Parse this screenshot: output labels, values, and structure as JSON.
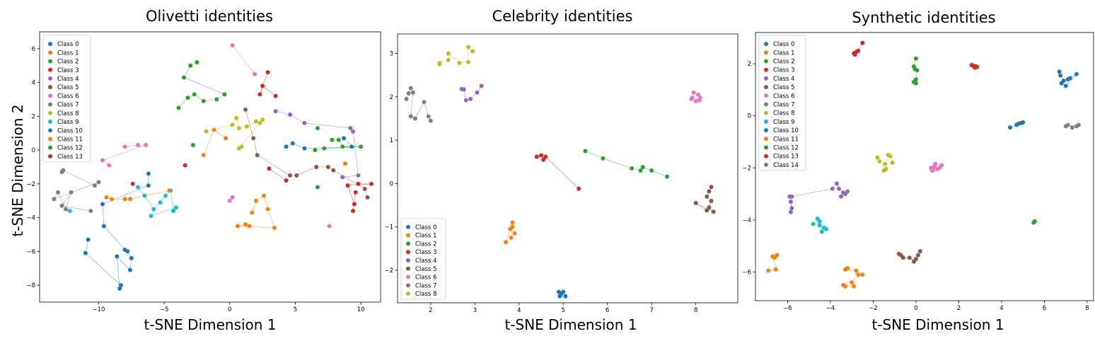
{
  "chart_data": [
    {
      "type": "scatter",
      "title": "Olivetti identities",
      "xlabel": "t-SNE Dimension 1",
      "ylabel": "t-SNE Dimension 2",
      "xlim": [
        -14.5,
        11.5
      ],
      "ylim": [
        -9,
        7
      ],
      "xticks": [
        -10,
        -5,
        0,
        5,
        10
      ],
      "yticks": [
        -8,
        -6,
        -4,
        -2,
        0,
        2,
        4,
        6
      ],
      "legend": "top-left",
      "series": [
        {
          "name": "Class 0",
          "x": [
            4.3,
            4.8,
            5.7,
            9.3,
            8.7
          ],
          "y": [
            0.2,
            0.4,
            0.1,
            0.2,
            0.7
          ]
        },
        {
          "name": "Class 1",
          "x": [
            -2.0,
            -1.2,
            -0.3,
            1.7,
            2.0,
            2.6,
            2.9,
            3.4,
            0.6,
            1.2,
            1.5,
            8.8
          ],
          "y": [
            -0.3,
            1.2,
            0.7,
            -3.7,
            -3.0,
            -2.7,
            -3.5,
            -4.6,
            -4.5,
            -4.4,
            -4.5,
            -0.8
          ]
        },
        {
          "name": "Class 2",
          "x": [
            -3.9,
            -3.2,
            -2.7,
            -2.0,
            -1.0,
            -0.4,
            -3.5,
            -3.0,
            -2.5,
            -2.8,
            6.7,
            6.7
          ],
          "y": [
            2.5,
            3.1,
            3.3,
            2.9,
            3.0,
            3.3,
            4.3,
            5.0,
            5.2,
            0.3,
            1.3,
            -2.2
          ]
        },
        {
          "name": "Class 3",
          "x": [
            2.9,
            2.3,
            2.5,
            3.5,
            3.0,
            4.3,
            9.8,
            10.8,
            9.0,
            9.5
          ],
          "y": [
            4.6,
            3.3,
            3.8,
            3.2,
            -1.1,
            -1.8,
            -2.0,
            -2.0,
            -2.1,
            -3.2
          ]
        },
        {
          "name": "Class 4",
          "x": [
            3.5,
            4.6,
            5.7,
            9.2,
            9.4,
            9.8,
            8.6
          ],
          "y": [
            2.3,
            2.1,
            1.6,
            1.3,
            1.1,
            -1.5,
            -1.6
          ]
        },
        {
          "name": "Class 5",
          "x": [
            1.2,
            1.8,
            2.1,
            4.6,
            5.1,
            6.6,
            7.5,
            7.9,
            10.3,
            10.5
          ],
          "y": [
            2.4,
            0.7,
            -0.3,
            -1.5,
            -1.5,
            -1.0,
            -1.0,
            -1.2,
            -2.3,
            -2.8
          ]
        },
        {
          "name": "Class 6",
          "x": [
            0.2,
            1.9,
            -8.0,
            -7.0,
            -6.4,
            -9.7,
            -9.2,
            0.0,
            0.2,
            7.6
          ],
          "y": [
            6.2,
            4.5,
            0.2,
            0.3,
            0.3,
            -0.6,
            -0.9,
            -3.0,
            -2.8,
            -4.5
          ]
        },
        {
          "name": "Class 7",
          "x": [
            -12.8,
            -12.7,
            -10.3,
            -10.0,
            -13.4,
            -13.1,
            -12.5,
            -12.1,
            -12.8,
            -10.6
          ],
          "y": [
            -1.3,
            -1.2,
            -2.1,
            -1.9,
            -2.9,
            -2.5,
            -3.5,
            -2.5,
            -3.3,
            -3.6
          ]
        },
        {
          "name": "Class 8",
          "x": [
            -1.8,
            0.2,
            0.5,
            0.7,
            1.3,
            2.0,
            2.3,
            2.5,
            0.7,
            0.9
          ],
          "y": [
            1.1,
            1.5,
            1.9,
            1.3,
            1.4,
            1.7,
            1.6,
            1.8,
            0.1,
            0.2
          ]
        },
        {
          "name": "Class 9",
          "x": [
            -7.0,
            -6.5,
            -5.8,
            -5.3,
            -4.9,
            -4.5,
            -4.3,
            -4.1,
            -6.0,
            -12.2
          ],
          "y": [
            -2.2,
            -2.7,
            -3.5,
            -3.1,
            -2.7,
            -2.4,
            -3.6,
            -3.4,
            -3.9,
            -3.6
          ]
        },
        {
          "name": "Class 10",
          "x": [
            -6.2,
            -6.2,
            -9.7,
            -9.6,
            -8.0,
            -7.8,
            -7.5,
            -7.6,
            -8.6,
            -8.4,
            -8.3,
            -11.0,
            -10.8
          ],
          "y": [
            -1.4,
            -2.1,
            -3.2,
            -4.5,
            -5.9,
            -6.0,
            -6.4,
            -7.1,
            -6.3,
            -8.2,
            -8.0,
            -6.1,
            -5.3
          ]
        },
        {
          "name": "Class 11",
          "x": [
            -9.4,
            -9.0,
            -8.0,
            -7.6,
            -4.6
          ],
          "y": [
            -2.8,
            -2.9,
            -2.9,
            -2.9,
            -2.4
          ]
        },
        {
          "name": "Class 12",
          "x": [
            7.8,
            8.3,
            8.6,
            10.0,
            7.2,
            6.5
          ],
          "y": [
            0.6,
            0.6,
            0.2,
            0.2,
            0.1,
            0.0
          ]
        },
        {
          "name": "Class 13",
          "x": [
            -3.4,
            -7.4,
            9.6,
            9.4
          ],
          "y": [
            -0.9,
            -2.0,
            -2.5,
            -3.6
          ]
        }
      ]
    },
    {
      "type": "scatter",
      "title": "Celebrity identities",
      "xlabel": "t-SNE Dimension 1",
      "ylabel": "",
      "xlim": [
        1.25,
        8.95
      ],
      "ylim": [
        -2.75,
        3.45
      ],
      "xticks": [
        2,
        3,
        4,
        5,
        6,
        7,
        8
      ],
      "yticks": [
        -2,
        -1,
        0,
        1,
        2,
        3
      ],
      "legend": "bottom-left",
      "series": [
        {
          "name": "Class 0",
          "x": [
            4.9,
            4.95,
            5.0,
            4.92,
            5.05
          ],
          "y": [
            -2.5,
            -2.55,
            -2.5,
            -2.6,
            -2.6
          ]
        },
        {
          "name": "Class 1",
          "x": [
            3.7,
            3.8,
            3.85,
            3.82,
            3.9,
            3.85
          ],
          "y": [
            -1.35,
            -1.05,
            -0.9,
            -1.25,
            -1.15,
            -1.0
          ]
        },
        {
          "name": "Class 2",
          "x": [
            5.5,
            5.9,
            6.55,
            6.75,
            6.8,
            7.0,
            7.35
          ],
          "y": [
            0.75,
            0.58,
            0.35,
            0.3,
            0.38,
            0.3,
            0.16
          ]
        },
        {
          "name": "Class 3",
          "x": [
            4.4,
            4.5,
            4.55,
            4.6,
            5.35
          ],
          "y": [
            0.62,
            0.65,
            0.55,
            0.62,
            -0.12
          ]
        },
        {
          "name": "Class 4",
          "x": [
            2.7,
            2.75,
            2.8,
            2.9,
            3.05,
            3.15
          ],
          "y": [
            2.18,
            2.17,
            1.92,
            1.95,
            2.1,
            2.25
          ]
        },
        {
          "name": "Class 5",
          "x": [
            8.35,
            8.3,
            8.25,
            8.35,
            8.3,
            8.4,
            8.0,
            8.25
          ],
          "y": [
            -0.08,
            -0.18,
            -0.3,
            -0.4,
            -0.55,
            -0.65,
            -0.45,
            -0.62
          ]
        },
        {
          "name": "Class 6",
          "x": [
            7.9,
            7.95,
            8.05,
            8.1,
            8.0,
            7.92,
            8.08
          ],
          "y": [
            1.95,
            2.1,
            2.05,
            1.98,
            1.9,
            1.98,
            1.92
          ]
        },
        {
          "name": "Class 7",
          "x": [
            1.45,
            1.5,
            1.55,
            1.6,
            1.55,
            1.65,
            1.85,
            1.95,
            2.0
          ],
          "y": [
            1.95,
            2.08,
            2.2,
            2.1,
            1.55,
            1.5,
            1.88,
            1.55,
            1.45
          ]
        },
        {
          "name": "Class 8",
          "x": [
            2.2,
            2.2,
            2.4,
            2.4,
            2.65,
            2.85,
            2.85,
            2.95
          ],
          "y": [
            2.75,
            2.78,
            2.85,
            3.0,
            2.78,
            2.8,
            3.15,
            3.05
          ]
        }
      ]
    },
    {
      "type": "scatter",
      "title": "Synthetic identities",
      "xlabel": "t-SNE Dimension 1",
      "ylabel": "",
      "xlim": [
        -7.5,
        8.3
      ],
      "ylim": [
        -7.1,
        3.2
      ],
      "xticks": [
        -6,
        -4,
        -2,
        0,
        2,
        4,
        6,
        8
      ],
      "yticks": [
        -6,
        -4,
        -2,
        0,
        2
      ],
      "legend": "top-left",
      "series": [
        {
          "name": "Class 0",
          "x": [
            6.7,
            6.75,
            6.9,
            7.1,
            7.2,
            7.5,
            7.0,
            6.8
          ],
          "y": [
            1.7,
            1.55,
            1.35,
            1.4,
            1.45,
            1.6,
            1.15,
            1.25
          ]
        },
        {
          "name": "Class 1",
          "x": [
            -6.5,
            -6.6,
            -6.7,
            -6.55,
            -6.9,
            -3.2,
            -3.3,
            -2.8,
            -2.7,
            -2.5,
            -3.4,
            -3.3,
            -2.9,
            -3.0
          ],
          "y": [
            -5.35,
            -5.45,
            -5.4,
            -5.9,
            -5.95,
            -5.85,
            -5.9,
            -5.95,
            -6.1,
            -6.1,
            -6.5,
            -6.55,
            -6.55,
            -6.4
          ]
        },
        {
          "name": "Class 2",
          "x": [
            0.0,
            -0.1,
            -0.05,
            0.05,
            0.0,
            0.0,
            -0.1,
            5.55,
            5.5
          ],
          "y": [
            2.2,
            1.9,
            1.8,
            1.75,
            1.4,
            1.25,
            1.3,
            -4.05,
            -4.1
          ]
        },
        {
          "name": "Class 3",
          "x": [
            -2.5,
            -2.7,
            -2.8,
            -2.85,
            -2.9
          ],
          "y": [
            2.8,
            2.5,
            2.45,
            2.35,
            2.4
          ]
        },
        {
          "name": "Class 4",
          "x": [
            -5.9,
            -5.85,
            -5.8,
            -5.85,
            -5.8,
            -3.9,
            -3.7,
            -3.6,
            -3.4,
            -3.5,
            -3.3,
            -3.2
          ],
          "y": [
            -3.1,
            -3.3,
            -3.55,
            -3.7,
            -3.1,
            -2.8,
            -2.6,
            -2.8,
            -2.95,
            -3.1,
            -3.0,
            -2.9
          ]
        },
        {
          "name": "Class 5",
          "x": [
            -0.8,
            -0.7,
            -0.6,
            -0.3,
            -0.1,
            0.0,
            0.1,
            0.2
          ],
          "y": [
            -5.3,
            -5.35,
            -5.45,
            -5.45,
            -5.6,
            -5.5,
            -5.35,
            -5.2
          ]
        },
        {
          "name": "Class 6",
          "x": [
            0.7,
            0.8,
            0.9,
            1.0,
            0.85,
            1.1,
            1.2,
            0.75
          ],
          "y": [
            -2.0,
            -2.1,
            -1.85,
            -2.05,
            -1.95,
            -2.0,
            -1.9,
            -2.1
          ]
        },
        {
          "name": "Class 7",
          "x": [
            7.0,
            7.1,
            7.3,
            7.6,
            7.5
          ],
          "y": [
            -0.4,
            -0.35,
            -0.45,
            -0.35,
            -0.4
          ]
        },
        {
          "name": "Class 8",
          "x": [
            -1.8,
            -1.7,
            -1.5,
            -1.4,
            -1.3,
            -1.2,
            -1.1,
            -1.45
          ],
          "y": [
            -1.6,
            -1.75,
            -2.1,
            -2.05,
            -1.5,
            -1.55,
            -1.8,
            -1.85
          ]
        },
        {
          "name": "Class 9",
          "x": [
            -4.8,
            -4.6,
            -4.5,
            -4.4,
            -4.3,
            -4.5,
            -4.2
          ],
          "y": [
            -4.15,
            -3.95,
            -4.05,
            -4.45,
            -4.3,
            -4.2,
            -4.35
          ]
        },
        {
          "name": "Class 10",
          "x": [
            4.4,
            4.7,
            4.8,
            4.9,
            5.0
          ],
          "y": [
            -0.45,
            -0.35,
            -0.3,
            -0.28,
            -0.25
          ]
        },
        {
          "name": "Class 11",
          "x": [],
          "y": []
        },
        {
          "name": "Class 12",
          "x": [],
          "y": []
        },
        {
          "name": "Class 13",
          "x": [
            2.6,
            2.7,
            2.8,
            2.75,
            2.85
          ],
          "y": [
            1.95,
            1.92,
            1.9,
            1.85,
            1.88
          ]
        },
        {
          "name": "Class 14",
          "x": [],
          "y": []
        }
      ]
    }
  ],
  "colors": [
    "#1f77b4",
    "#ff7f0e",
    "#2ca02c",
    "#d62728",
    "#9467bd",
    "#8c564b",
    "#e377c2",
    "#7f7f7f",
    "#bcbd22",
    "#17becf",
    "#1f77b4",
    "#ff7f0e",
    "#2ca02c",
    "#d62728",
    "#9467bd"
  ]
}
